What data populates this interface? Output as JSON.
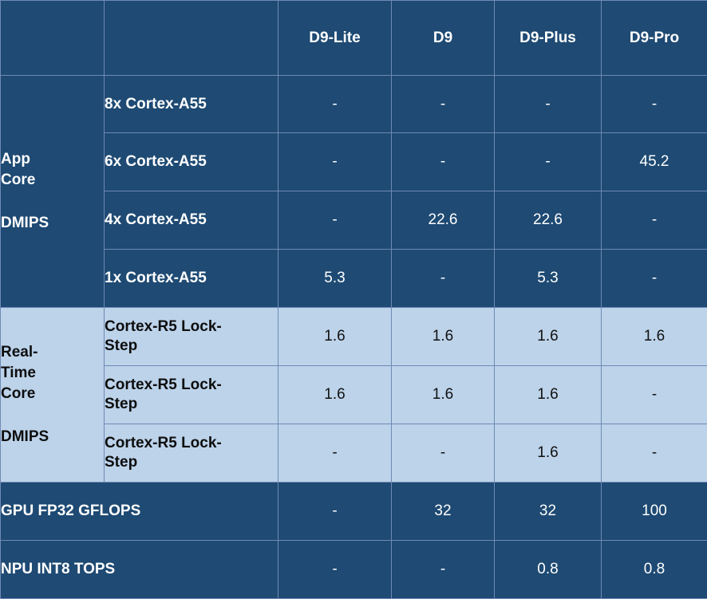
{
  "columns": [
    "D9-Lite",
    "D9",
    "D9-Plus",
    "D9-Pro"
  ],
  "app_core": {
    "label_line1": "App",
    "label_line2": "Core",
    "label_line3": "DMIPS",
    "rows": [
      {
        "name": "8x Cortex-A55",
        "values": [
          "-",
          "-",
          "-",
          "-"
        ]
      },
      {
        "name": "6x Cortex-A55",
        "values": [
          "-",
          "-",
          "-",
          "45.2"
        ]
      },
      {
        "name": "4x Cortex-A55",
        "values": [
          "-",
          "22.6",
          "22.6",
          "-"
        ]
      },
      {
        "name": "1x Cortex-A55",
        "values": [
          "5.3",
          "-",
          "5.3",
          "-"
        ]
      }
    ]
  },
  "rt_core": {
    "label_line1": "Real-",
    "label_line2": "Time",
    "label_line3": "Core",
    "label_line4": "DMIPS",
    "rows": [
      {
        "name_line1": "Cortex-R5 Lock-",
        "name_line2": "Step",
        "values": [
          "1.6",
          "1.6",
          "1.6",
          "1.6"
        ]
      },
      {
        "name_line1": "Cortex-R5 Lock-",
        "name_line2": "Step",
        "values": [
          "1.6",
          "1.6",
          "1.6",
          "-"
        ]
      },
      {
        "name_line1": "Cortex-R5 Lock-",
        "name_line2": "Step",
        "values": [
          "-",
          "-",
          "1.6",
          "-"
        ]
      }
    ]
  },
  "gpu": {
    "name": "GPU FP32 GFLOPS",
    "values": [
      "-",
      "32",
      "32",
      "100"
    ]
  },
  "npu": {
    "name": "NPU INT8 TOPS",
    "values": [
      "-",
      "-",
      "0.8",
      "0.8"
    ]
  }
}
